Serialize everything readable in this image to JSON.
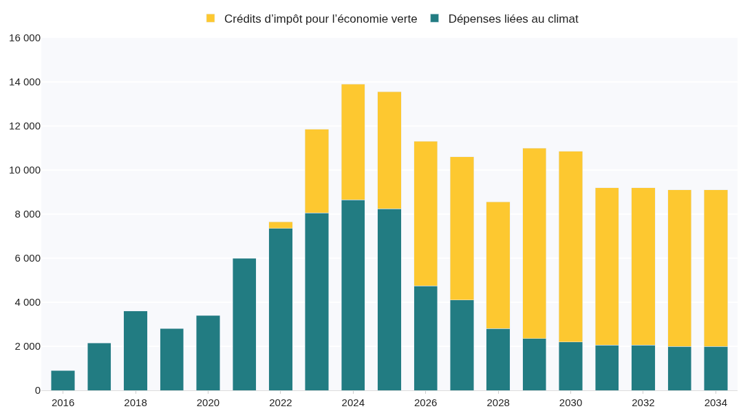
{
  "chart_data": {
    "type": "bar",
    "stacked": true,
    "categories": [
      "2016",
      null,
      "2018",
      null,
      "2020",
      null,
      "2022",
      null,
      "2024",
      null,
      "2026",
      null,
      "2028",
      null,
      "2030",
      null,
      "2032",
      null,
      "2034"
    ],
    "series": [
      {
        "name": "Dépenses liées au climat",
        "color": "#227c82",
        "values": [
          900,
          2150,
          3600,
          2800,
          3400,
          6000,
          7350,
          8050,
          8650,
          8250,
          4750,
          4100,
          2800,
          2350,
          2200,
          2050,
          2050,
          2000,
          2000
        ]
      },
      {
        "name": "Crédits d’impôt pour l’économie verte",
        "color": "#fdc830",
        "values": [
          null,
          null,
          null,
          null,
          null,
          null,
          300,
          3800,
          5250,
          5300,
          6550,
          6500,
          5750,
          8650,
          8650,
          7150,
          7150,
          7100,
          7100
        ]
      }
    ],
    "ylim": [
      0,
      16000
    ],
    "yticks": [
      {
        "value": 0,
        "label": "0"
      },
      {
        "value": 2000,
        "label": "2 000"
      },
      {
        "value": 4000,
        "label": "4 000"
      },
      {
        "value": 6000,
        "label": "6 000"
      },
      {
        "value": 8000,
        "label": "8 000"
      },
      {
        "value": 10000,
        "label": "10 000"
      },
      {
        "value": 12000,
        "label": "12 000"
      },
      {
        "value": 14000,
        "label": "14 000"
      },
      {
        "value": 16000,
        "label": "16 000"
      }
    ],
    "grid": "y",
    "legend": "top"
  }
}
